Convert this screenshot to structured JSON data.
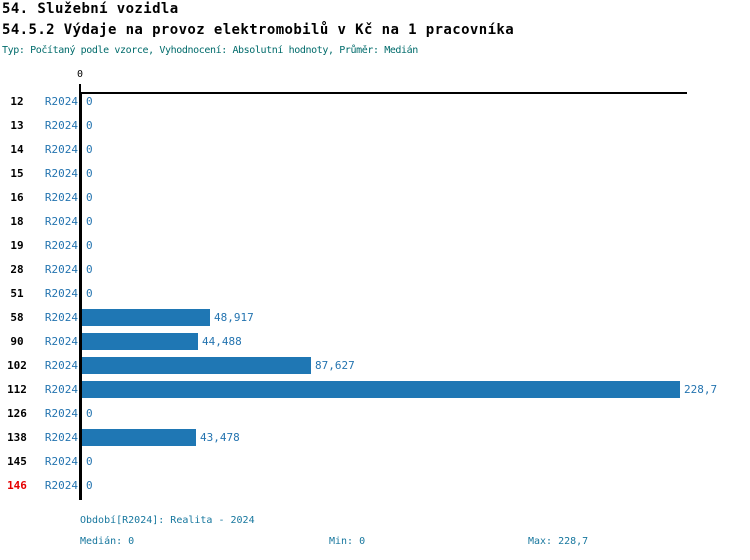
{
  "header": {
    "title": "54. Služební vozidla",
    "subtitle": "54.5.2 Výdaje na provoz elektromobilů v Kč na 1 pracovníka",
    "meta": "Typ: Počítaný podle vzorce, Vyhodnocení: Absolutní hodnoty, Průměr: Medián"
  },
  "axis": {
    "tick_label": "0"
  },
  "rows": [
    {
      "id": "12",
      "period": "R2024",
      "value_text": "0",
      "value": 0,
      "highlight": false
    },
    {
      "id": "13",
      "period": "R2024",
      "value_text": "0",
      "value": 0,
      "highlight": false
    },
    {
      "id": "14",
      "period": "R2024",
      "value_text": "0",
      "value": 0,
      "highlight": false
    },
    {
      "id": "15",
      "period": "R2024",
      "value_text": "0",
      "value": 0,
      "highlight": false
    },
    {
      "id": "16",
      "period": "R2024",
      "value_text": "0",
      "value": 0,
      "highlight": false
    },
    {
      "id": "18",
      "period": "R2024",
      "value_text": "0",
      "value": 0,
      "highlight": false
    },
    {
      "id": "19",
      "period": "R2024",
      "value_text": "0",
      "value": 0,
      "highlight": false
    },
    {
      "id": "28",
      "period": "R2024",
      "value_text": "0",
      "value": 0,
      "highlight": false
    },
    {
      "id": "51",
      "period": "R2024",
      "value_text": "0",
      "value": 0,
      "highlight": false
    },
    {
      "id": "58",
      "period": "R2024",
      "value_text": "48,917",
      "value": 48.917,
      "highlight": false
    },
    {
      "id": "90",
      "period": "R2024",
      "value_text": "44,488",
      "value": 44.488,
      "highlight": false
    },
    {
      "id": "102",
      "period": "R2024",
      "value_text": "87,627",
      "value": 87.627,
      "highlight": false
    },
    {
      "id": "112",
      "period": "R2024",
      "value_text": "228,7",
      "value": 228.7,
      "highlight": false
    },
    {
      "id": "126",
      "period": "R2024",
      "value_text": "0",
      "value": 0,
      "highlight": false
    },
    {
      "id": "138",
      "period": "R2024",
      "value_text": "43,478",
      "value": 43.478,
      "highlight": false
    },
    {
      "id": "145",
      "period": "R2024",
      "value_text": "0",
      "value": 0,
      "highlight": false
    },
    {
      "id": "146",
      "period": "R2024",
      "value_text": "0",
      "value": 0,
      "highlight": true
    }
  ],
  "footer": {
    "period_line": "Období[R2024]: Realita - 2024",
    "median_label": "Medián: 0",
    "min_label": "Min: 0",
    "max_label": "Max: 228,7"
  },
  "colors": {
    "bar": "#1f77b4",
    "text_blue": "#2474b0",
    "meta": "#006b6b",
    "footer": "#17779e",
    "highlight": "#e60000"
  },
  "chart_data": {
    "type": "bar",
    "orientation": "horizontal",
    "title": "54.5.2 Výdaje na provoz elektromobilů v Kč na 1 pracovníka",
    "group_title": "54. Služební vozidla",
    "subtitle": "Typ: Počítaný podle vzorce, Vyhodnocení: Absolutní hodnoty, Průměr: Medián",
    "categories": [
      "12",
      "13",
      "14",
      "15",
      "16",
      "18",
      "19",
      "28",
      "51",
      "58",
      "90",
      "102",
      "112",
      "126",
      "138",
      "145",
      "146"
    ],
    "series": [
      {
        "name": "R2024",
        "values": [
          0,
          0,
          0,
          0,
          0,
          0,
          0,
          0,
          0,
          48.917,
          44.488,
          87.627,
          228.7,
          0,
          43.478,
          0,
          0
        ],
        "value_labels": [
          "0",
          "0",
          "0",
          "0",
          "0",
          "0",
          "0",
          "0",
          "0",
          "48,917",
          "44,488",
          "87,627",
          "228,7",
          "0",
          "43,478",
          "0",
          "0"
        ]
      }
    ],
    "xlabel": "",
    "ylabel": "",
    "xlim": [
      0,
      228.7
    ],
    "x_ticks": [
      "0"
    ],
    "grid": false,
    "legend_position": "none",
    "period": "Realita - 2024",
    "stats": {
      "median": 0,
      "min": 0,
      "max": 228.7
    },
    "highlighted_category": "146"
  }
}
